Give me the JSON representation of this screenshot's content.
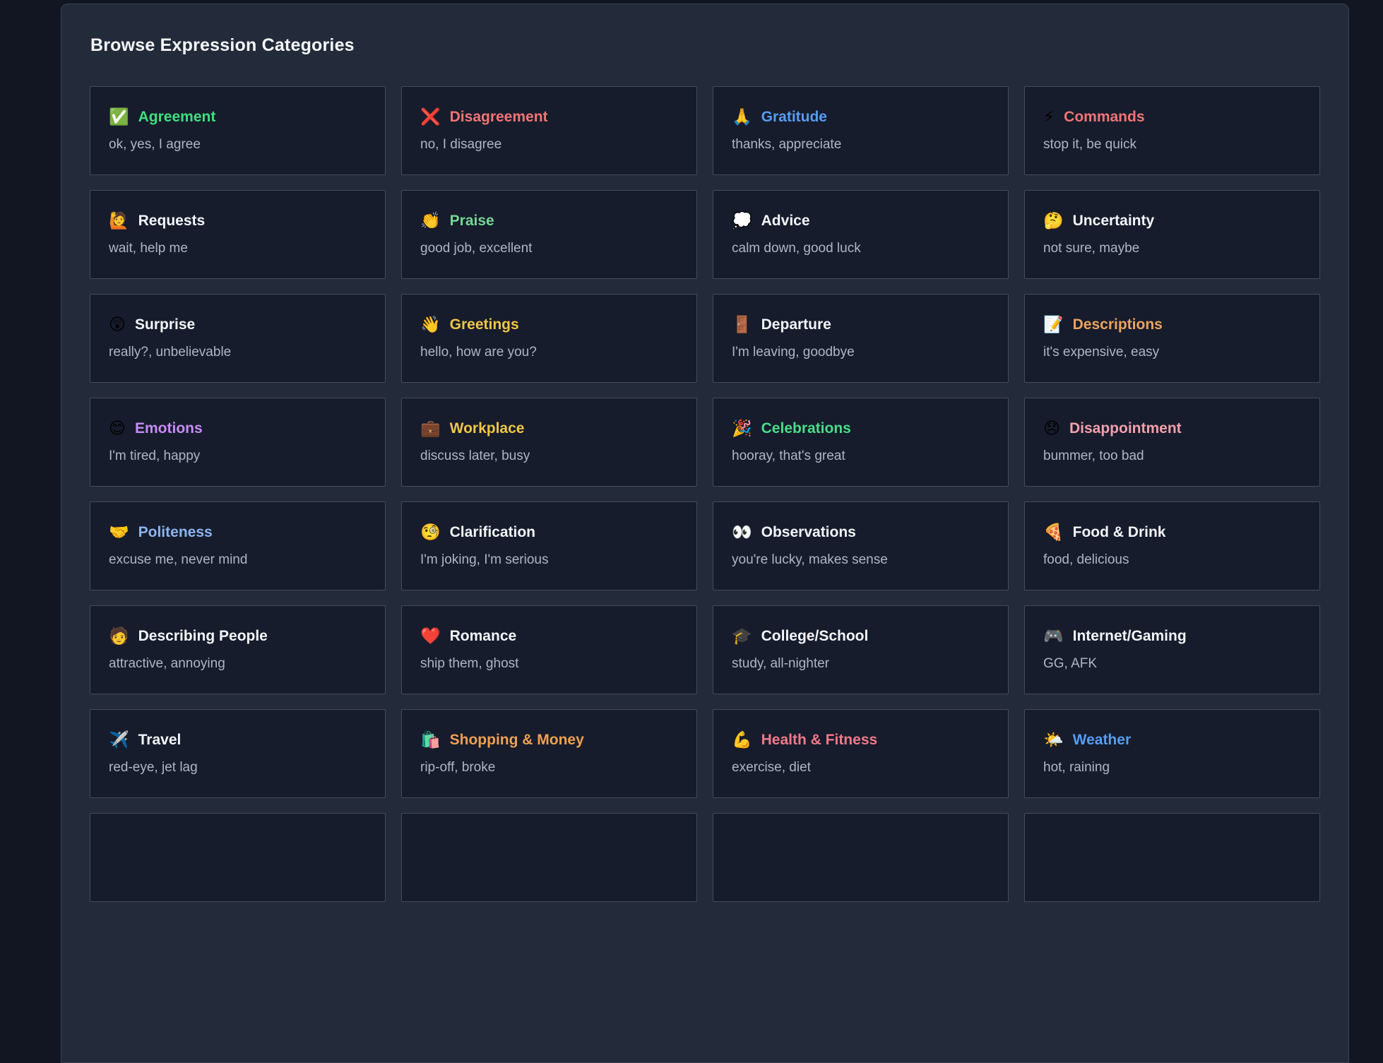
{
  "page": {
    "title": "Browse Expression Categories"
  },
  "colors": {
    "page_background": "#111622",
    "panel_background": "#232b3a",
    "card_background": "#161c2b",
    "card_border": "#434b5c",
    "title_default": "#f2f5f9",
    "subtitle": "#aeb6c2"
  },
  "categories": [
    {
      "icon": "✅",
      "title": "Agreement",
      "subtitle": "ok, yes, I agree",
      "title_color": "#3ee07f"
    },
    {
      "icon": "❌",
      "title": "Disagreement",
      "subtitle": "no, I disagree",
      "title_color": "#f47474"
    },
    {
      "icon": "🙏",
      "title": "Gratitude",
      "subtitle": "thanks, appreciate",
      "title_color": "#569cf2"
    },
    {
      "icon": "⚡",
      "title": "Commands",
      "subtitle": "stop it, be quick",
      "title_color": "#f47474"
    },
    {
      "icon": "🙋",
      "title": "Requests",
      "subtitle": "wait, help me",
      "title_color": "#f2f5f9"
    },
    {
      "icon": "👏",
      "title": "Praise",
      "subtitle": "good job, excellent",
      "title_color": "#74d795"
    },
    {
      "icon": "💭",
      "title": "Advice",
      "subtitle": "calm down, good luck",
      "title_color": "#f2f5f9"
    },
    {
      "icon": "🤔",
      "title": "Uncertainty",
      "subtitle": "not sure, maybe",
      "title_color": "#f2f5f9"
    },
    {
      "icon": "😲",
      "title": "Surprise",
      "subtitle": "really?, unbelievable",
      "title_color": "#f2f5f9"
    },
    {
      "icon": "👋",
      "title": "Greetings",
      "subtitle": "hello, how are you?",
      "title_color": "#f0c645"
    },
    {
      "icon": "🚪",
      "title": "Departure",
      "subtitle": "I'm leaving, goodbye",
      "title_color": "#f2f5f9"
    },
    {
      "icon": "📝",
      "title": "Descriptions",
      "subtitle": "it's expensive, easy",
      "title_color": "#eda35f"
    },
    {
      "icon": "😊",
      "title": "Emotions",
      "subtitle": "I'm tired, happy",
      "title_color": "#c78bf5"
    },
    {
      "icon": "💼",
      "title": "Workplace",
      "subtitle": "discuss later, busy",
      "title_color": "#f0c645"
    },
    {
      "icon": "🎉",
      "title": "Celebrations",
      "subtitle": "hooray, that's great",
      "title_color": "#48dc8a"
    },
    {
      "icon": "😞",
      "title": "Disappointment",
      "subtitle": "bummer, too bad",
      "title_color": "#f4a0ad"
    },
    {
      "icon": "🤝",
      "title": "Politeness",
      "subtitle": "excuse me, never mind",
      "title_color": "#8cb4f0"
    },
    {
      "icon": "🧐",
      "title": "Clarification",
      "subtitle": "I'm joking, I'm serious",
      "title_color": "#f2f5f9"
    },
    {
      "icon": "👀",
      "title": "Observations",
      "subtitle": "you're lucky, makes sense",
      "title_color": "#f2f5f9"
    },
    {
      "icon": "🍕",
      "title": "Food & Drink",
      "subtitle": "food, delicious",
      "title_color": "#f2f5f9"
    },
    {
      "icon": "🧑",
      "title": "Describing People",
      "subtitle": "attractive, annoying",
      "title_color": "#f2f5f9"
    },
    {
      "icon": "❤️",
      "title": "Romance",
      "subtitle": "ship them, ghost",
      "title_color": "#f2f5f9"
    },
    {
      "icon": "🎓",
      "title": "College/School",
      "subtitle": "study, all-nighter",
      "title_color": "#f2f5f9"
    },
    {
      "icon": "🎮",
      "title": "Internet/Gaming",
      "subtitle": "GG, AFK",
      "title_color": "#f2f5f9"
    },
    {
      "icon": "✈️",
      "title": "Travel",
      "subtitle": "red-eye, jet lag",
      "title_color": "#f2f5f9"
    },
    {
      "icon": "🛍️",
      "title": "Shopping & Money",
      "subtitle": "rip-off, broke",
      "title_color": "#efa052"
    },
    {
      "icon": "💪",
      "title": "Health & Fitness",
      "subtitle": "exercise, diet",
      "title_color": "#f4798a"
    },
    {
      "icon": "🌤️",
      "title": "Weather",
      "subtitle": "hot, raining",
      "title_color": "#569cf2"
    }
  ]
}
